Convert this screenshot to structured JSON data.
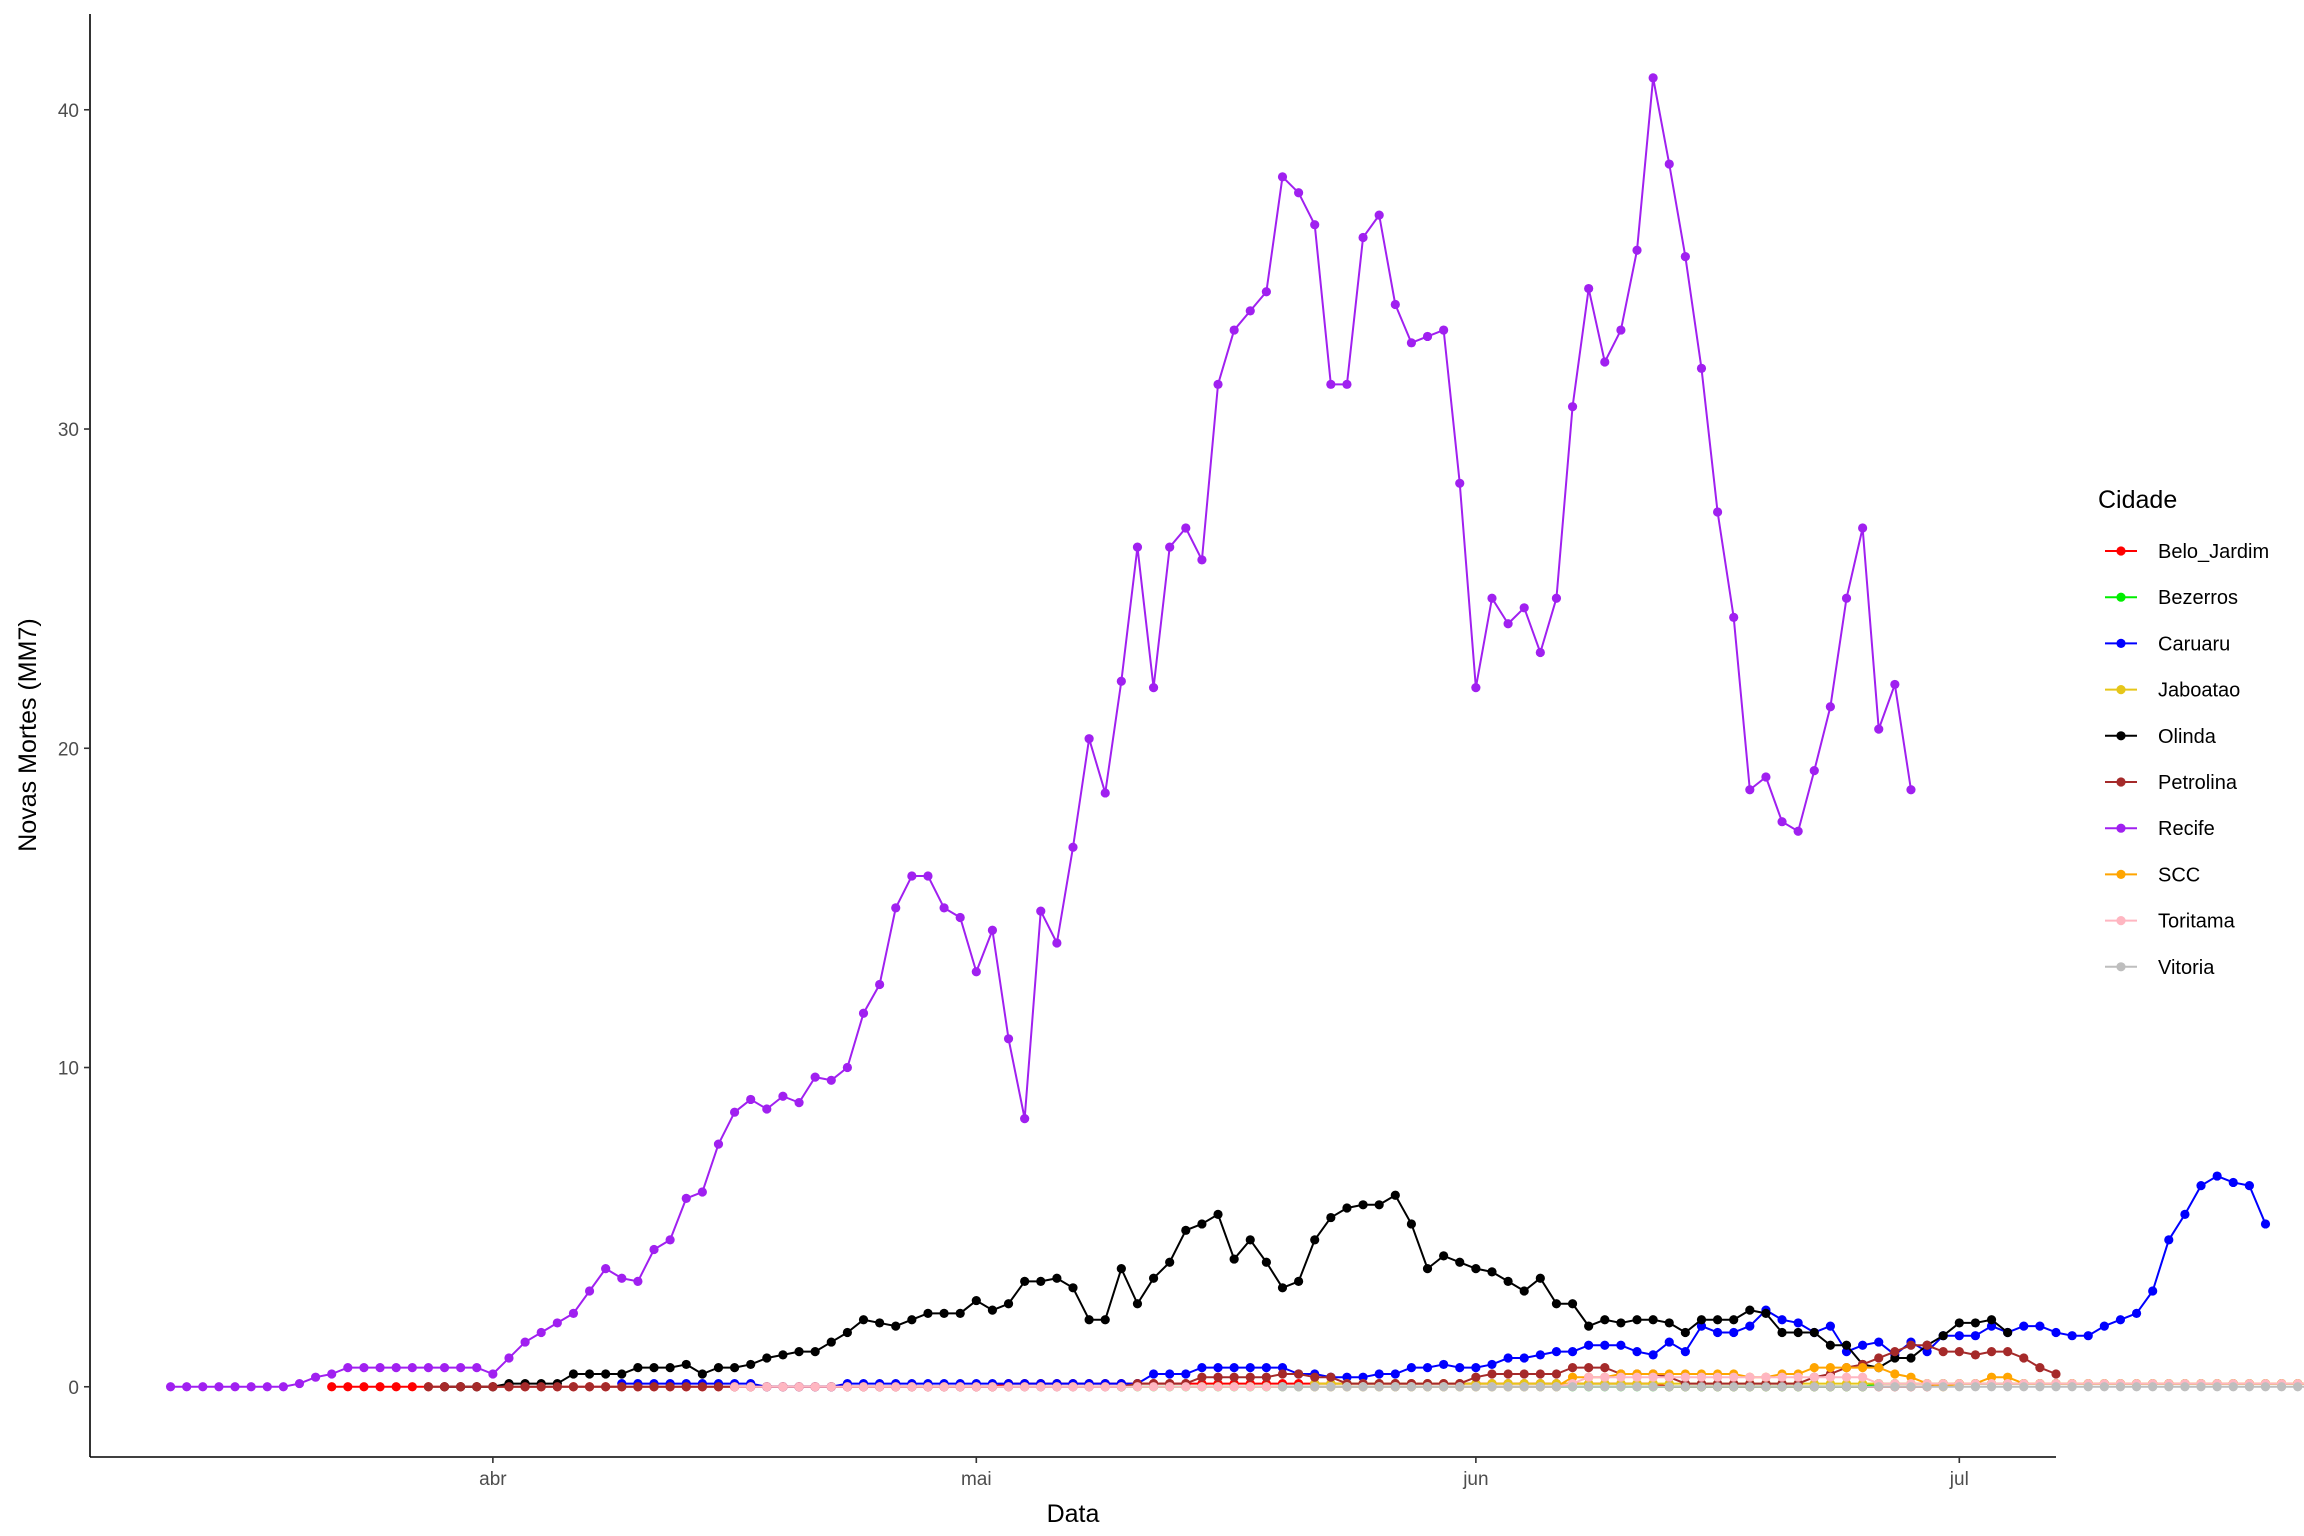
{
  "chart_data": {
    "type": "line",
    "xlabel": "Data",
    "ylabel": "Novas Mortes (MM7)",
    "ylim": [
      -2.2,
      43
    ],
    "xlim": [
      "2020-03-07",
      "2020-07-07"
    ],
    "x_ticks": [
      {
        "date": "2020-04-01",
        "label": "abr"
      },
      {
        "date": "2020-05-01",
        "label": "mai"
      },
      {
        "date": "2020-06-01",
        "label": "jun"
      },
      {
        "date": "2020-07-01",
        "label": "jul"
      }
    ],
    "y_ticks": [
      {
        "value": 0,
        "label": "0"
      },
      {
        "value": 10,
        "label": "10"
      },
      {
        "value": 20,
        "label": "20"
      },
      {
        "value": 30,
        "label": "30"
      },
      {
        "value": 40,
        "label": "40"
      }
    ],
    "grid": false,
    "legend": {
      "title": "Cidade",
      "position": "right"
    },
    "series": [
      {
        "name": "Belo_Jardim",
        "color": "#ff0000",
        "start_date": "2020-03-22",
        "values": [
          0,
          0,
          0,
          0,
          0,
          0,
          0,
          0,
          0,
          0,
          0,
          0,
          0,
          0,
          0,
          0,
          0,
          0,
          0,
          0,
          0,
          0,
          0,
          0,
          0,
          0,
          0,
          0,
          0,
          0,
          0,
          0,
          0,
          0,
          0,
          0,
          0,
          0,
          0,
          0,
          0,
          0,
          0.1,
          0.1,
          0.1,
          0.1,
          0.1,
          0.1,
          0.1,
          0.1,
          0.1,
          0.1,
          0.1,
          0.1,
          0.1,
          0.1,
          0.1,
          0.1,
          0.1,
          0.1,
          0.1,
          0.1,
          0.1,
          0.1,
          0.1,
          0.1,
          0.1,
          0.1,
          0.1,
          0.1,
          0.1,
          0.1,
          0.1,
          0.1,
          0.1,
          0.1,
          0.1,
          0.1,
          0.1,
          0.1,
          0.1,
          0.1,
          0.1,
          0,
          0,
          0,
          0,
          0,
          0,
          0,
          0,
          0,
          0,
          0,
          0,
          0,
          0,
          0,
          0,
          0,
          0.1,
          0.1,
          0.1,
          0.1,
          0.1,
          0.1,
          0.1,
          0.1,
          0.1,
          0.1,
          0.1,
          0.1,
          0.1,
          0.1,
          0.1,
          0.1,
          0.1,
          0.1,
          0.1,
          0.1,
          0.1,
          0.1,
          0.1,
          0.1,
          0.1,
          0.1,
          0.1,
          0.1,
          0.1,
          0.1,
          0.1,
          0.1,
          0.1,
          0.3,
          0.3,
          0.3
        ]
      },
      {
        "name": "Bezerros",
        "color": "#00ee00",
        "start_date": "2020-05-10",
        "values": [
          0,
          0,
          0,
          0,
          0,
          0,
          0,
          0,
          0,
          0,
          0,
          0,
          0,
          0,
          0,
          0,
          0,
          0,
          0,
          0,
          0,
          0,
          0,
          0,
          0,
          0,
          0,
          0,
          0,
          0,
          0,
          0,
          0,
          0,
          0,
          0,
          0,
          0,
          0,
          0,
          0,
          0,
          0,
          0,
          0,
          0,
          0,
          0.1,
          0.1,
          0.1,
          0.1,
          0.1,
          0.1,
          0.1,
          0.1,
          0.1,
          0.1,
          0.1,
          0.1,
          0.1,
          0.1,
          0.1,
          0.1,
          0.1,
          0.1,
          0.1,
          0.1,
          0.1,
          0.1,
          0.1,
          0.1,
          0.1,
          0.1,
          0.1,
          0.1,
          0.1,
          0.3,
          0.4,
          0.4,
          0.4,
          0.4,
          0.6,
          0.7,
          0.7,
          0.6,
          0.6,
          0.4,
          0.4,
          0.4,
          0.3,
          0.3,
          0.4,
          0.4,
          0.4,
          0.6,
          0.7,
          0.7,
          0.9,
          0.9,
          0.7,
          0.7,
          0.7,
          0.4
        ]
      },
      {
        "name": "Caruaru",
        "color": "#0000ff",
        "start_date": "2020-04-09",
        "values": [
          0.1,
          0.1,
          0.1,
          0.1,
          0.1,
          0.1,
          0.1,
          0.1,
          0.1,
          0,
          0,
          0,
          0,
          0,
          0.1,
          0.1,
          0.1,
          0.1,
          0.1,
          0.1,
          0.1,
          0.1,
          0.1,
          0.1,
          0.1,
          0.1,
          0.1,
          0.1,
          0.1,
          0.1,
          0.1,
          0.1,
          0.1,
          0.4,
          0.4,
          0.4,
          0.6,
          0.6,
          0.6,
          0.6,
          0.6,
          0.6,
          0.4,
          0.4,
          0.3,
          0.3,
          0.3,
          0.4,
          0.4,
          0.6,
          0.6,
          0.7,
          0.6,
          0.6,
          0.7,
          0.9,
          0.9,
          1,
          1.1,
          1.1,
          1.3,
          1.3,
          1.3,
          1.1,
          1,
          1.4,
          1.1,
          1.9,
          1.7,
          1.7,
          1.9,
          2.4,
          2.1,
          2,
          1.7,
          1.9,
          1.1,
          1.3,
          1.4,
          1,
          1.4,
          1.1,
          1.6,
          1.6,
          1.6,
          1.9,
          1.7,
          1.9,
          1.9,
          1.7,
          1.6,
          1.6,
          1.9,
          2.1,
          2.3,
          3,
          4.6,
          5.4,
          6.3,
          6.6,
          6.4,
          6.3,
          5.1
        ]
      },
      {
        "name": "Jaboatao",
        "color": "#e6c619",
        "start_date": "2020-05-22",
        "values": [
          0.1,
          0.1,
          0.1,
          0.1,
          0.1,
          0.1,
          0.1,
          0.1,
          0.1,
          0.1,
          0.1,
          0.1,
          0.1,
          0.1,
          0.1,
          0.1,
          0.1,
          0.1,
          0.1,
          0.1,
          0.1,
          0.1,
          0.1,
          0.1,
          0.1,
          0.1,
          0.1,
          0.1,
          0.1,
          0.1,
          0.1,
          0.1,
          0.1,
          0.1,
          0.1,
          0.1,
          0.1,
          0.1,
          0.1,
          0.1,
          0.1,
          0.1,
          0.1,
          0.1,
          0.1,
          0.1,
          0.1,
          0.1,
          0.1,
          0.1,
          0.1,
          0.1,
          0.1,
          0.1,
          0.1,
          0.1,
          0.1,
          0.1,
          0.1,
          0.1,
          0.1,
          0.1,
          0.1,
          0.1,
          0.1,
          0.1,
          0.1,
          0.1,
          0.1,
          0.1,
          0.1
        ]
      },
      {
        "name": "Olinda",
        "color": "#000000",
        "start_date": "2020-03-29",
        "values": [
          0,
          0,
          0,
          0,
          0.1,
          0.1,
          0.1,
          0.1,
          0.4,
          0.4,
          0.4,
          0.4,
          0.6,
          0.6,
          0.6,
          0.7,
          0.4,
          0.6,
          0.6,
          0.7,
          0.9,
          1,
          1.1,
          1.1,
          1.4,
          1.7,
          2.1,
          2,
          1.9,
          2.1,
          2.3,
          2.3,
          2.3,
          2.7,
          2.4,
          2.6,
          3.3,
          3.3,
          3.4,
          3.1,
          2.1,
          2.1,
          3.7,
          2.6,
          3.4,
          3.9,
          4.9,
          5.1,
          5.4,
          4,
          4.6,
          3.9,
          3.1,
          3.3,
          4.6,
          5.3,
          5.6,
          5.7,
          5.7,
          6,
          5.1,
          3.7,
          4.1,
          3.9,
          3.7,
          3.6,
          3.3,
          3,
          3.4,
          2.6,
          2.6,
          1.9,
          2.1,
          2,
          2.1,
          2.1,
          2,
          1.7,
          2.1,
          2.1,
          2.1,
          2.4,
          2.3,
          1.7,
          1.7,
          1.7,
          1.3,
          1.3,
          0.7,
          0.6,
          0.9,
          0.9,
          1.3,
          1.6,
          2,
          2,
          2.1,
          1.7
        ]
      },
      {
        "name": "Petrolina",
        "color": "#a52a2a",
        "start_date": "2020-03-28",
        "values": [
          0,
          0,
          0,
          0,
          0,
          0,
          0,
          0,
          0,
          0,
          0,
          0,
          0,
          0,
          0,
          0,
          0,
          0,
          0,
          0,
          0,
          0,
          0,
          0,
          0,
          0,
          0,
          0,
          0,
          0,
          0,
          0,
          0,
          0,
          0,
          0,
          0,
          0,
          0,
          0,
          0,
          0,
          0,
          0,
          0.1,
          0.1,
          0.1,
          0.1,
          0.3,
          0.3,
          0.3,
          0.3,
          0.3,
          0.4,
          0.4,
          0.3,
          0.3,
          0.1,
          0.1,
          0.1,
          0.1,
          0.1,
          0.1,
          0.1,
          0.1,
          0.3,
          0.4,
          0.4,
          0.4,
          0.4,
          0.4,
          0.6,
          0.6,
          0.6,
          0.4,
          0.4,
          0.4,
          0.3,
          0.1,
          0.1,
          0.1,
          0.1,
          0.1,
          0.1,
          0.1,
          0.1,
          0.3,
          0.4,
          0.6,
          0.7,
          0.9,
          1.1,
          1.3,
          1.3,
          1.1,
          1.1,
          1,
          1.1,
          1.1,
          0.9,
          0.6,
          0.4
        ]
      },
      {
        "name": "Recife",
        "color": "#a020f0",
        "start_date": "2020-03-12",
        "values": [
          0,
          0,
          0,
          0,
          0,
          0,
          0,
          0,
          0.1,
          0.3,
          0.4,
          0.6,
          0.6,
          0.6,
          0.6,
          0.6,
          0.6,
          0.6,
          0.6,
          0.6,
          0.4,
          0.9,
          1.4,
          1.7,
          2,
          2.3,
          3,
          3.7,
          3.4,
          3.3,
          4.3,
          4.6,
          5.9,
          6.1,
          7.6,
          8.6,
          9,
          8.7,
          9.1,
          8.9,
          9.7,
          9.6,
          10,
          11.7,
          12.6,
          15,
          16,
          16,
          15,
          14.7,
          13,
          14.3,
          10.9,
          8.4,
          14.9,
          13.9,
          16.9,
          20.3,
          18.6,
          22.1,
          26.3,
          21.9,
          26.3,
          26.9,
          25.9,
          31.4,
          33.1,
          33.7,
          34.3,
          37.9,
          37.4,
          36.4,
          31.4,
          31.4,
          36,
          36.7,
          33.9,
          32.7,
          32.9,
          33.1,
          28.3,
          21.9,
          24.7,
          23.9,
          24.4,
          23,
          24.7,
          30.7,
          34.4,
          32.1,
          33.1,
          35.6,
          41,
          38.3,
          35.4,
          31.9,
          27.4,
          24.1,
          18.7,
          19.1,
          17.7,
          17.4,
          19.3,
          21.3,
          24.7,
          26.9,
          20.6,
          22,
          18.7
        ]
      },
      {
        "name": "SCC",
        "color": "#ffa500",
        "start_date": "2020-05-22",
        "values": [
          0,
          0,
          0,
          0,
          0,
          0,
          0,
          0,
          0,
          0,
          0,
          0,
          0,
          0,
          0,
          0,
          0.3,
          0.3,
          0.3,
          0.4,
          0.4,
          0.4,
          0.4,
          0.4,
          0.4,
          0.4,
          0.4,
          0.3,
          0.3,
          0.4,
          0.4,
          0.6,
          0.6,
          0.6,
          0.6,
          0.6,
          0.4,
          0.3,
          0.1,
          0,
          0.1,
          0.1,
          0.3,
          0.3,
          0.1,
          0.1,
          0.1,
          0.1,
          0.1,
          0.1,
          0.1,
          0.1,
          0.1,
          0.1,
          0.1,
          0.1,
          0.1,
          0.1,
          0.1,
          0.1,
          0.1,
          0.1,
          0.1,
          0.1,
          0.1,
          0.1,
          0.1,
          0.1,
          0.1,
          0.1,
          0.1
        ]
      },
      {
        "name": "Toritama",
        "color": "#ffb6c1",
        "start_date": "2020-04-16",
        "values": [
          0,
          0,
          0,
          0,
          0,
          0,
          0,
          0,
          0,
          0,
          0,
          0,
          0,
          0,
          0,
          0,
          0,
          0,
          0,
          0,
          0,
          0,
          0,
          0,
          0,
          0,
          0,
          0,
          0,
          0,
          0,
          0,
          0,
          0,
          0,
          0,
          0,
          0,
          0,
          0,
          0,
          0,
          0,
          0,
          0,
          0,
          0,
          0,
          0,
          0,
          0,
          0,
          0.1,
          0.3,
          0.3,
          0.3,
          0.3,
          0.3,
          0.3,
          0.3,
          0.3,
          0.3,
          0.3,
          0.3,
          0.3,
          0.3,
          0.3,
          0.3,
          0.3,
          0.3,
          0.3,
          0.1,
          0.1,
          0.1,
          0.1,
          0.1,
          0.1,
          0.1,
          0.1,
          0.1,
          0.1,
          0.1,
          0.1,
          0.1,
          0.1,
          0.1,
          0.1,
          0.1,
          0.1,
          0.1,
          0.1,
          0.1,
          0.1,
          0.1,
          0.1,
          0.1,
          0.1,
          0.1,
          0.1,
          0.1,
          0.1,
          0.1,
          0.1,
          0.1,
          0.1,
          0.1
        ]
      },
      {
        "name": "Vitoria",
        "color": "#bebebe",
        "start_date": "2020-05-20",
        "values": [
          0,
          0,
          0,
          0,
          0,
          0,
          0,
          0,
          0,
          0,
          0,
          0,
          0,
          0,
          0,
          0,
          0,
          0,
          0,
          0,
          0,
          0,
          0,
          0,
          0,
          0,
          0,
          0,
          0,
          0,
          0,
          0,
          0,
          0,
          0,
          0,
          0,
          0,
          0,
          0,
          0,
          0,
          0,
          0,
          0,
          0,
          0,
          0,
          0,
          0,
          0,
          0,
          0,
          0,
          0,
          0,
          0,
          0,
          0,
          0,
          0,
          0,
          0,
          0,
          0,
          0,
          0,
          0,
          0,
          0,
          0,
          0
        ]
      }
    ]
  }
}
